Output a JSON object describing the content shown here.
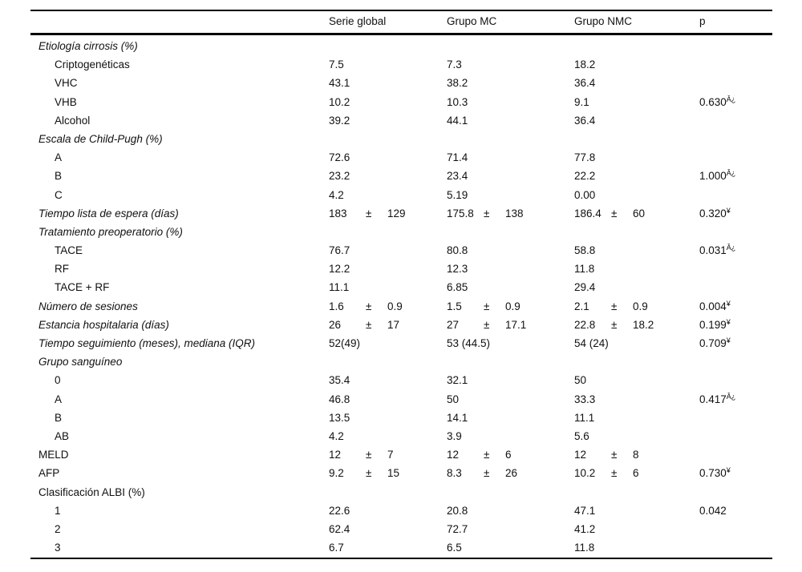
{
  "table": {
    "pm_symbol": "±",
    "columns": [
      "",
      "Serie global",
      "Grupo MC",
      "Grupo NMC",
      "p"
    ],
    "rows": [
      {
        "label": "Etiología cirrosis (%)",
        "italic": true,
        "indent": 0,
        "cells": [
          null,
          null,
          null
        ],
        "p": null
      },
      {
        "label": "Criptogenéticas",
        "italic": false,
        "indent": 1,
        "cells": [
          {
            "v": "7.5"
          },
          {
            "v": "7.3"
          },
          {
            "v": "18.2"
          }
        ],
        "p": null
      },
      {
        "label": "VHC",
        "italic": false,
        "indent": 1,
        "cells": [
          {
            "v": "43.1"
          },
          {
            "v": "38.2"
          },
          {
            "v": "36.4"
          }
        ],
        "p": null
      },
      {
        "label": "VHB",
        "italic": false,
        "indent": 1,
        "cells": [
          {
            "v": "10.2"
          },
          {
            "v": "10.3"
          },
          {
            "v": "9.1"
          }
        ],
        "p": {
          "v": "0.630",
          "sup": "Â¿"
        }
      },
      {
        "label": "Alcohol",
        "italic": false,
        "indent": 1,
        "cells": [
          {
            "v": "39.2"
          },
          {
            "v": "44.1"
          },
          {
            "v": "36.4"
          }
        ],
        "p": null
      },
      {
        "label": "Escala de Child-Pugh (%)",
        "italic": true,
        "indent": 0,
        "cells": [
          null,
          null,
          null
        ],
        "p": null
      },
      {
        "label": "A",
        "italic": false,
        "indent": 1,
        "cells": [
          {
            "v": "72.6"
          },
          {
            "v": "71.4"
          },
          {
            "v": "77.8"
          }
        ],
        "p": null
      },
      {
        "label": "B",
        "italic": false,
        "indent": 1,
        "cells": [
          {
            "v": "23.2"
          },
          {
            "v": "23.4"
          },
          {
            "v": "22.2"
          }
        ],
        "p": {
          "v": "1.000",
          "sup": "Â¿"
        }
      },
      {
        "label": "C",
        "italic": false,
        "indent": 1,
        "cells": [
          {
            "v": "4.2"
          },
          {
            "v": "5.19"
          },
          {
            "v": "0.00"
          }
        ],
        "p": null
      },
      {
        "label": "Tiempo lista de espera (días)",
        "italic": true,
        "indent": 0,
        "cells": [
          {
            "v": "183",
            "sd": "129"
          },
          {
            "v": "175.8",
            "sd": "138"
          },
          {
            "v": "186.4",
            "sd": "60"
          }
        ],
        "p": {
          "v": "0.320",
          "sup": "¥"
        }
      },
      {
        "label": "Tratamiento preoperatorio (%)",
        "italic": true,
        "indent": 0,
        "cells": [
          null,
          null,
          null
        ],
        "p": null
      },
      {
        "label": "TACE",
        "italic": false,
        "indent": 1,
        "cells": [
          {
            "v": "76.7"
          },
          {
            "v": "80.8"
          },
          {
            "v": "58.8"
          }
        ],
        "p": {
          "v": "0.031",
          "sup": "Â¿"
        }
      },
      {
        "label": "RF",
        "italic": false,
        "indent": 1,
        "cells": [
          {
            "v": "12.2"
          },
          {
            "v": "12.3"
          },
          {
            "v": "11.8"
          }
        ],
        "p": null
      },
      {
        "label": "TACE + RF",
        "italic": false,
        "indent": 1,
        "cells": [
          {
            "v": "11.1"
          },
          {
            "v": "6.85"
          },
          {
            "v": "29.4"
          }
        ],
        "p": null
      },
      {
        "label": "Número de sesiones",
        "italic": true,
        "indent": 0,
        "cells": [
          {
            "v": "1.6",
            "sd": "0.9"
          },
          {
            "v": "1.5",
            "sd": "0.9"
          },
          {
            "v": "2.1",
            "sd": "0.9"
          }
        ],
        "p": {
          "v": "0.004",
          "sup": "¥"
        }
      },
      {
        "label": "Estancia hospitalaria (días)",
        "italic": true,
        "indent": 0,
        "cells": [
          {
            "v": "26",
            "sd": "17"
          },
          {
            "v": "27",
            "sd": "17.1"
          },
          {
            "v": "22.8",
            "sd": "18.2"
          }
        ],
        "p": {
          "v": "0.199",
          "sup": "¥"
        }
      },
      {
        "label": "Tiempo seguimiento (meses), mediana (IQR)",
        "italic": true,
        "indent": 0,
        "cells": [
          {
            "v": "52(49)"
          },
          {
            "v": "53 (44.5)"
          },
          {
            "v": "54 (24)"
          }
        ],
        "p": {
          "v": "0.709",
          "sup": "¥"
        }
      },
      {
        "label": "Grupo sanguíneo",
        "italic": true,
        "indent": 0,
        "cells": [
          null,
          null,
          null
        ],
        "p": null
      },
      {
        "label": "0",
        "italic": false,
        "indent": 1,
        "cells": [
          {
            "v": "35.4"
          },
          {
            "v": "32.1"
          },
          {
            "v": "50"
          }
        ],
        "p": null
      },
      {
        "label": "A",
        "italic": false,
        "indent": 1,
        "cells": [
          {
            "v": "46.8"
          },
          {
            "v": "50"
          },
          {
            "v": "33.3"
          }
        ],
        "p": {
          "v": "0.417",
          "sup": "Â¿"
        }
      },
      {
        "label": "B",
        "italic": false,
        "indent": 1,
        "cells": [
          {
            "v": "13.5"
          },
          {
            "v": "14.1"
          },
          {
            "v": "11.1"
          }
        ],
        "p": null
      },
      {
        "label": "AB",
        "italic": false,
        "indent": 1,
        "cells": [
          {
            "v": "4.2"
          },
          {
            "v": "3.9"
          },
          {
            "v": "5.6"
          }
        ],
        "p": null
      },
      {
        "label": "MELD",
        "italic": false,
        "indent": 0,
        "cells": [
          {
            "v": "12",
            "sd": "7"
          },
          {
            "v": "12",
            "sd": "6"
          },
          {
            "v": "12",
            "sd": "8"
          }
        ],
        "p": null
      },
      {
        "label": "AFP",
        "italic": false,
        "indent": 0,
        "cells": [
          {
            "v": "9.2",
            "sd": "15"
          },
          {
            "v": "8.3",
            "sd": "26"
          },
          {
            "v": "10.2",
            "sd": "6"
          }
        ],
        "p": {
          "v": "0.730",
          "sup": "¥"
        }
      },
      {
        "label": "Clasificación ALBI (%)",
        "italic": false,
        "indent": 0,
        "cells": [
          null,
          null,
          null
        ],
        "p": null
      },
      {
        "label": "1",
        "italic": false,
        "indent": 1,
        "cells": [
          {
            "v": "22.6"
          },
          {
            "v": "20.8"
          },
          {
            "v": "47.1"
          }
        ],
        "p": {
          "v": "0.042"
        }
      },
      {
        "label": "2",
        "italic": false,
        "indent": 1,
        "cells": [
          {
            "v": "62.4"
          },
          {
            "v": "72.7"
          },
          {
            "v": "41.2"
          }
        ],
        "p": null
      },
      {
        "label": "3",
        "italic": false,
        "indent": 1,
        "cells": [
          {
            "v": "6.7"
          },
          {
            "v": "6.5"
          },
          {
            "v": "11.8"
          }
        ],
        "p": null
      }
    ]
  }
}
